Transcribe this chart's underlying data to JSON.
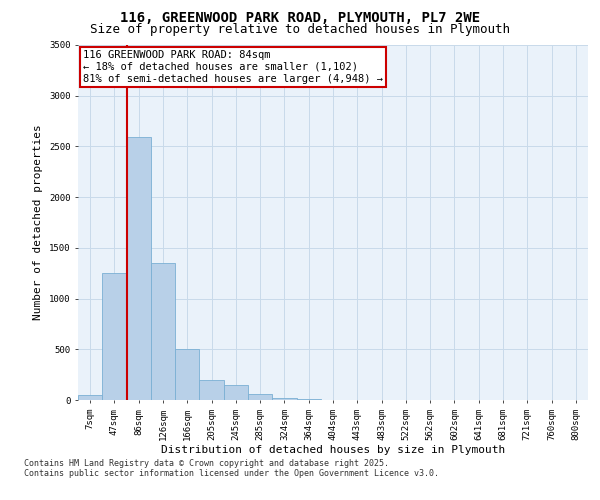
{
  "title_line1": "116, GREENWOOD PARK ROAD, PLYMOUTH, PL7 2WE",
  "title_line2": "Size of property relative to detached houses in Plymouth",
  "xlabel": "Distribution of detached houses by size in Plymouth",
  "ylabel": "Number of detached properties",
  "bar_labels": [
    "7sqm",
    "47sqm",
    "86sqm",
    "126sqm",
    "166sqm",
    "205sqm",
    "245sqm",
    "285sqm",
    "324sqm",
    "364sqm",
    "404sqm",
    "443sqm",
    "483sqm",
    "522sqm",
    "562sqm",
    "602sqm",
    "641sqm",
    "681sqm",
    "721sqm",
    "760sqm",
    "800sqm"
  ],
  "bar_values": [
    50,
    1250,
    2590,
    1350,
    500,
    200,
    150,
    55,
    20,
    5,
    2,
    1,
    0,
    0,
    0,
    0,
    0,
    0,
    0,
    0,
    0
  ],
  "bar_color": "#b8d0e8",
  "bar_edge_color": "#7aafd4",
  "annotation_text": "116 GREENWOOD PARK ROAD: 84sqm\n← 18% of detached houses are smaller (1,102)\n81% of semi-detached houses are larger (4,948) →",
  "annotation_box_color": "#ffffff",
  "annotation_box_edge": "#cc0000",
  "vline_color": "#cc0000",
  "vline_x": 1.5,
  "ylim": [
    0,
    3500
  ],
  "yticks": [
    0,
    500,
    1000,
    1500,
    2000,
    2500,
    3000,
    3500
  ],
  "grid_color": "#c8daea",
  "background_color": "#eaf2fa",
  "footnote_line1": "Contains HM Land Registry data © Crown copyright and database right 2025.",
  "footnote_line2": "Contains public sector information licensed under the Open Government Licence v3.0.",
  "title_fontsize": 10,
  "subtitle_fontsize": 9,
  "axis_label_fontsize": 8,
  "tick_fontsize": 6.5,
  "annotation_fontsize": 7.5,
  "footnote_fontsize": 6
}
